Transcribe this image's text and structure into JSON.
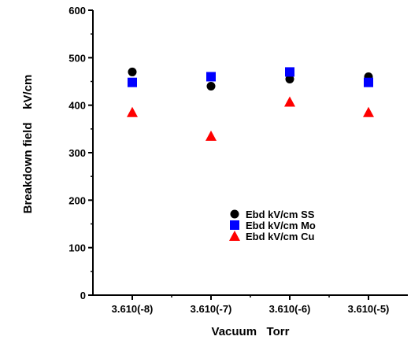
{
  "chart_data": {
    "type": "scatter",
    "title": "",
    "xlabel": "Vacuum   Torr",
    "ylabel": "Breakdown field    kV/cm",
    "categories": [
      "3.610(-8)",
      "3.610(-7)",
      "3.610(-6)",
      "3.610(-5)"
    ],
    "ylim": [
      0,
      600
    ],
    "yticks": [
      0,
      100,
      200,
      300,
      400,
      500,
      600
    ],
    "grid": false,
    "legend_position": "lower-right",
    "series": [
      {
        "name": "Ebd kV/cm SS",
        "marker": "circle",
        "color": "#000000",
        "values": [
          470,
          440,
          455,
          460
        ]
      },
      {
        "name": "Ebd kV/cm Mo",
        "marker": "square",
        "color": "#0000ff",
        "values": [
          448,
          460,
          470,
          448
        ]
      },
      {
        "name": "Ebd kV/cm Cu",
        "marker": "triangle",
        "color": "#ff0000",
        "values": [
          385,
          335,
          407,
          385
        ]
      }
    ]
  }
}
